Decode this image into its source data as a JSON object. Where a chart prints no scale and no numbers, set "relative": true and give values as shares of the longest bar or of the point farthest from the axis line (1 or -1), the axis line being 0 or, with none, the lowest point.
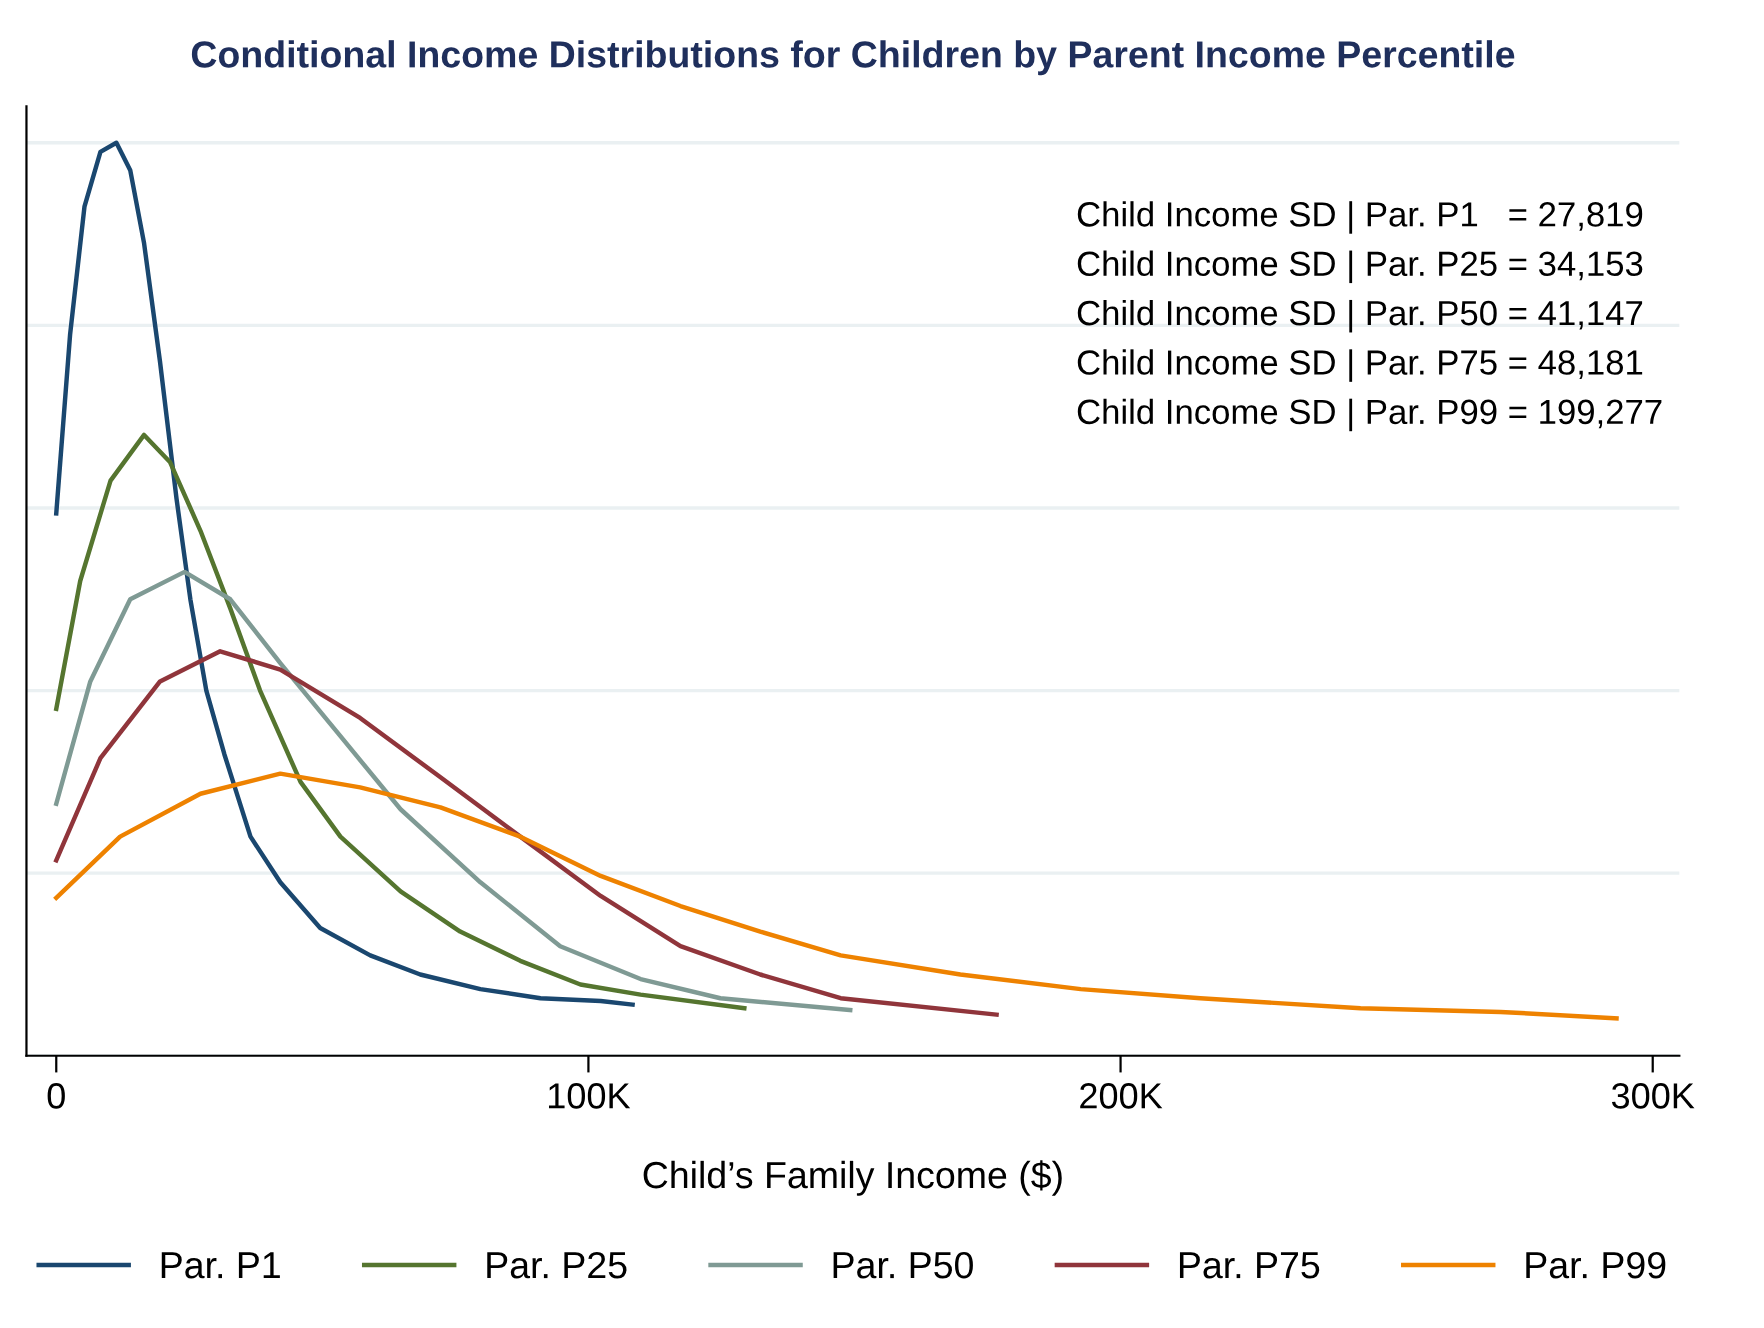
{
  "chart_data": {
    "type": "line",
    "relative": true,
    "title": "Conditional Income Distributions for Children by Parent Income Percentile",
    "xlabel": "Child’s Family Income ($)",
    "xlim": [
      -5600,
      305000
    ],
    "xticks": [
      0,
      {
        "value": 100000,
        "label": "100K"
      },
      {
        "value": 200000,
        "label": "200K"
      },
      {
        "value": 300000,
        "label": "300K"
      }
    ],
    "tick_labels": "x",
    "grid": "y",
    "legend": "bottom",
    "line_style": "solid",
    "annotations": [
      "Child Income SD | Par. P1   = 27,819",
      "Child Income SD | Par. P25 = 34,153",
      "Child Income SD | Par. P50 = 41,147",
      "Child Income SD | Par. P75 = 48,181",
      "Child Income SD | Par. P99 = 199,277"
    ],
    "series": [
      {
        "name": "Par. P1",
        "color": "#1a476f",
        "x": [
          0,
          2600,
          5300,
          8300,
          11300,
          13900,
          16500,
          19500,
          22600,
          25200,
          28200,
          31600,
          36500,
          42100,
          49600,
          59000,
          68400,
          79700,
          91000,
          102300,
          108300
        ],
        "values": [
          0.594,
          0.79,
          0.93,
          0.99,
          1.0,
          0.97,
          0.89,
          0.76,
          0.61,
          0.5,
          0.4,
          0.33,
          0.24,
          0.19,
          0.14,
          0.11,
          0.089,
          0.073,
          0.063,
          0.06,
          0.056
        ]
      },
      {
        "name": "Par. P25",
        "color": "#55752f",
        "x": [
          0,
          4500,
          10200,
          16500,
          21400,
          27100,
          32700,
          38300,
          45900,
          53400,
          64700,
          75900,
          87200,
          98500,
          109800,
          129300
        ],
        "values": [
          0.38,
          0.52,
          0.63,
          0.68,
          0.65,
          0.575,
          0.49,
          0.4,
          0.3,
          0.24,
          0.18,
          0.136,
          0.104,
          0.078,
          0.067,
          0.052
        ]
      },
      {
        "name": "Par. P50",
        "color": "#7f9a94",
        "x": [
          0,
          6400,
          13900,
          24100,
          32700,
          42100,
          53400,
          64700,
          79700,
          94700,
          109800,
          124800,
          149200
        ],
        "values": [
          0.276,
          0.41,
          0.5,
          0.53,
          0.5,
          0.43,
          0.35,
          0.27,
          0.19,
          0.12,
          0.084,
          0.063,
          0.05
        ]
      },
      {
        "name": "Par. P75",
        "color": "#90353b",
        "x": [
          0,
          8300,
          19500,
          30800,
          42100,
          57100,
          72200,
          87200,
          102300,
          117300,
          132300,
          147400,
          176700
        ],
        "values": [
          0.214,
          0.326,
          0.41,
          0.443,
          0.423,
          0.37,
          0.305,
          0.24,
          0.175,
          0.12,
          0.089,
          0.063,
          0.045
        ]
      },
      {
        "name": "Par. P99",
        "color": "#ee8200",
        "x": [
          0,
          12000,
          27100,
          42100,
          57100,
          72200,
          87200,
          102300,
          117300,
          132300,
          147400,
          169900,
          192500,
          215000,
          245100,
          271400,
          293200
        ],
        "values": [
          0.173,
          0.24,
          0.287,
          0.309,
          0.294,
          0.272,
          0.24,
          0.197,
          0.164,
          0.136,
          0.11,
          0.089,
          0.073,
          0.063,
          0.052,
          0.048,
          0.041
        ]
      }
    ]
  }
}
